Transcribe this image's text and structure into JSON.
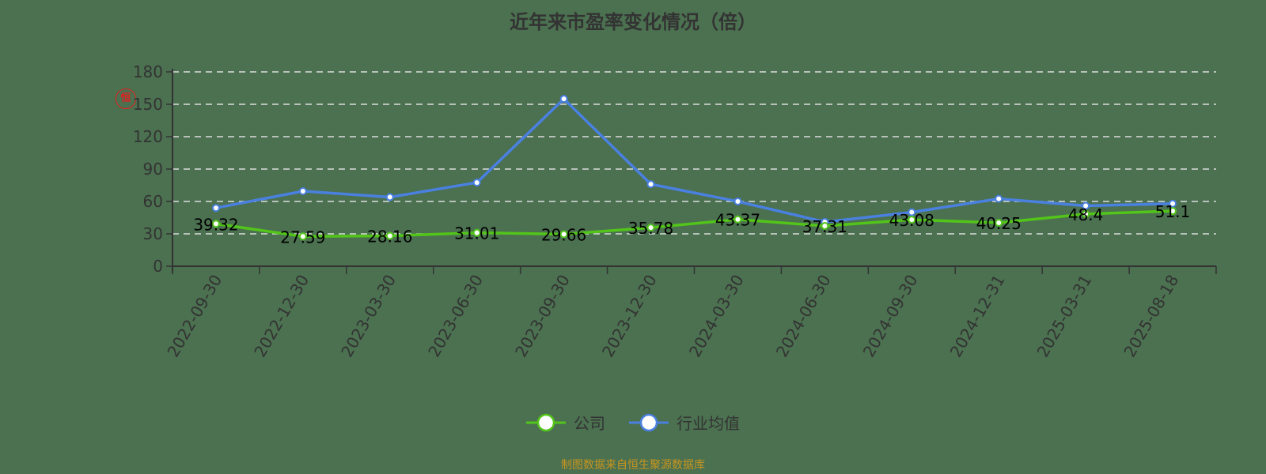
{
  "title": "近年来市盈率变化情况（倍）",
  "watermark": "恒",
  "footer": "制图数据来自恒生聚源数据库",
  "colors": {
    "background": "#4b7150",
    "company": "#52c41a",
    "industry": "#4a80e0",
    "footer": "#c8951e"
  },
  "legend": [
    {
      "label": "公司",
      "color": "#52c41a"
    },
    {
      "label": "行业均值",
      "color": "#4a80e0"
    }
  ],
  "chart_data": {
    "type": "line",
    "title": "近年来市盈率变化情况（倍）",
    "xlabel": "",
    "ylabel": "",
    "ylim": [
      0,
      180
    ],
    "yticks": [
      0,
      30,
      60,
      90,
      120,
      150,
      180
    ],
    "grid": true,
    "legend_position": "bottom",
    "categories": [
      "2022-09-30",
      "2022-12-30",
      "2023-03-30",
      "2023-06-30",
      "2023-09-30",
      "2023-12-30",
      "2024-03-30",
      "2024-06-30",
      "2024-09-30",
      "2024-12-31",
      "2025-03-31",
      "2025-08-18"
    ],
    "series": [
      {
        "name": "公司",
        "values": [
          39.32,
          27.59,
          28.16,
          31.01,
          29.66,
          35.78,
          43.37,
          37.31,
          43.08,
          40.25,
          48.4,
          51.1
        ],
        "labels": [
          "39.32",
          "27.59",
          "28.16",
          "31.01",
          "29.66",
          "35.78",
          "43.37",
          "37.31",
          "43.08",
          "40.25",
          "48.4",
          "51.1"
        ]
      },
      {
        "name": "行业均值",
        "values": [
          54,
          69.5,
          64,
          77.5,
          155,
          76,
          60,
          41,
          50,
          62.5,
          56,
          58
        ]
      }
    ]
  }
}
